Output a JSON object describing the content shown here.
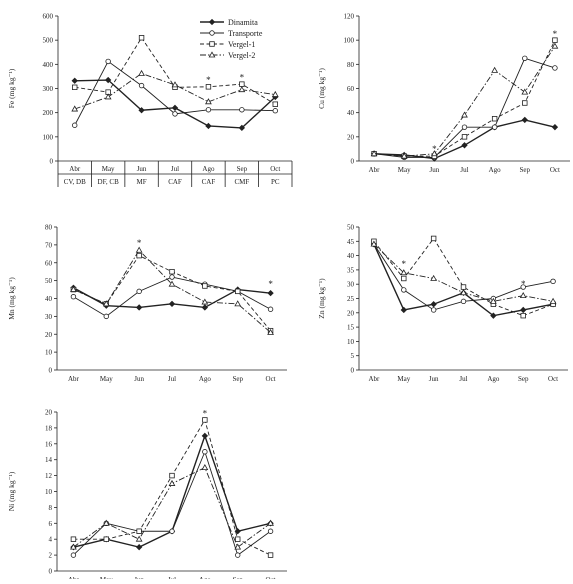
{
  "colors": {
    "ink": "#222222",
    "background": "#ffffff"
  },
  "legend": {
    "position": "top-right of first panel",
    "entries": [
      {
        "name": "Dinamita",
        "dash": "solid",
        "marker": "diamond"
      },
      {
        "name": "Transporte",
        "dash": "solid",
        "marker": "circle"
      },
      {
        "name": "Vergel-1",
        "dash": "dashed",
        "marker": "square"
      },
      {
        "name": "Vergel-2",
        "dash": "dashdot",
        "marker": "triangle"
      }
    ]
  },
  "chart_data": [
    {
      "type": "line",
      "ylabel": "Fe (mg kg⁻¹)",
      "ylim": [
        0,
        600
      ],
      "yticks": [
        0,
        100,
        200,
        300,
        400,
        500,
        600
      ],
      "categories": [
        "Abr",
        "May",
        "Jun",
        "Jul",
        "Ago",
        "Sep",
        "Oct"
      ],
      "sub_categories": [
        "CV, DB",
        "DF, CB",
        "MF",
        "CAF",
        "CAF",
        "CMF",
        "PC"
      ],
      "grid": false,
      "series": [
        {
          "name": "Dinamita",
          "values": [
            332,
            335,
            210,
            220,
            145,
            137,
            265
          ]
        },
        {
          "name": "Transporte",
          "values": [
            148,
            412,
            312,
            195,
            212,
            212,
            208
          ]
        },
        {
          "name": "Vergel-1",
          "values": [
            305,
            285,
            510,
            305,
            307,
            318,
            235
          ]
        },
        {
          "name": "Vergel-2",
          "values": [
            215,
            265,
            362,
            315,
            245,
            295,
            275
          ]
        }
      ],
      "annotations": [
        {
          "text": "*",
          "category": "Ago",
          "y": 335
        },
        {
          "text": "*",
          "category": "Sep",
          "y": 345
        }
      ]
    },
    {
      "type": "line",
      "ylabel": "Cu (mg kg⁻¹)",
      "ylim": [
        0,
        120
      ],
      "yticks": [
        0,
        20,
        40,
        60,
        80,
        100,
        120
      ],
      "categories": [
        "Abr",
        "May",
        "Jun",
        "Jul",
        "Ago",
        "Sep",
        "Oct"
      ],
      "grid": false,
      "series": [
        {
          "name": "Dinamita",
          "values": [
            6,
            5,
            2,
            13,
            28,
            34,
            28
          ]
        },
        {
          "name": "Transporte",
          "values": [
            6,
            3,
            3,
            28,
            28,
            85,
            77
          ]
        },
        {
          "name": "Vergel-1",
          "values": [
            6,
            4,
            4,
            20,
            35,
            48,
            100
          ]
        },
        {
          "name": "Vergel-2",
          "values": [
            6,
            4,
            6,
            38,
            75,
            57,
            95
          ]
        }
      ],
      "annotations": [
        {
          "text": "*",
          "category": "Jun",
          "y": 10
        },
        {
          "text": "*",
          "category": "Oct",
          "y": 105
        }
      ]
    },
    {
      "type": "line",
      "ylabel": "Mn (mg kg⁻¹)",
      "ylim": [
        0,
        80
      ],
      "yticks": [
        0,
        10,
        20,
        30,
        40,
        50,
        60,
        70,
        80
      ],
      "categories": [
        "Abr",
        "May",
        "Jun",
        "Jul",
        "Ago",
        "Sep",
        "Oct"
      ],
      "grid": false,
      "series": [
        {
          "name": "Dinamita",
          "values": [
            46,
            36,
            35,
            37,
            35,
            45,
            43
          ]
        },
        {
          "name": "Transporte",
          "values": [
            41,
            30,
            44,
            52,
            48,
            44,
            34
          ]
        },
        {
          "name": "Vergel-1",
          "values": [
            45,
            37,
            64,
            55,
            47,
            44,
            22
          ]
        },
        {
          "name": "Vergel-2",
          "values": [
            45,
            37,
            67,
            48,
            38,
            37,
            21
          ]
        }
      ],
      "annotations": [
        {
          "text": "*",
          "category": "Jun",
          "y": 71
        },
        {
          "text": "*",
          "category": "Oct",
          "y": 48
        }
      ]
    },
    {
      "type": "line",
      "ylabel": "Zn (mg kg⁻¹)",
      "ylim": [
        0,
        50
      ],
      "yticks": [
        0,
        5,
        10,
        15,
        20,
        25,
        30,
        35,
        40,
        45,
        50
      ],
      "categories": [
        "Abr",
        "May",
        "Jun",
        "Jul",
        "Ago",
        "Sep",
        "Oct"
      ],
      "grid": false,
      "series": [
        {
          "name": "Dinamita",
          "values": [
            44,
            21,
            23,
            27,
            19,
            21,
            23
          ]
        },
        {
          "name": "Transporte",
          "values": [
            44,
            28,
            21,
            24,
            25,
            29,
            31
          ]
        },
        {
          "name": "Vergel-1",
          "values": [
            45,
            32,
            46,
            29,
            23,
            19,
            23
          ]
        },
        {
          "name": "Vergel-2",
          "values": [
            44,
            34,
            32,
            27,
            24,
            26,
            24
          ]
        }
      ],
      "annotations": [
        {
          "text": "*",
          "category": "May",
          "y": 37
        },
        {
          "text": "*",
          "category": "Sep",
          "y": 30
        }
      ]
    },
    {
      "type": "line",
      "ylabel": "Ni (mg kg⁻¹)",
      "ylim": [
        0,
        20
      ],
      "yticks": [
        0,
        2,
        4,
        6,
        8,
        10,
        12,
        14,
        16,
        18,
        20
      ],
      "categories": [
        "Abr",
        "May",
        "Jun",
        "Jul",
        "Ago",
        "Sep",
        "Oct"
      ],
      "grid": false,
      "series": [
        {
          "name": "Dinamita",
          "values": [
            3,
            4,
            3,
            5,
            17,
            5,
            6
          ]
        },
        {
          "name": "Transporte",
          "values": [
            2,
            6,
            5,
            5,
            15,
            2,
            5
          ]
        },
        {
          "name": "Vergel-1",
          "values": [
            4,
            4,
            5,
            12,
            19,
            4,
            2
          ]
        },
        {
          "name": "Vergel-2",
          "values": [
            3,
            6,
            4,
            11,
            13,
            3,
            6
          ]
        }
      ],
      "annotations": [
        {
          "text": "*",
          "category": "Ago",
          "y": 19.8
        }
      ]
    }
  ]
}
